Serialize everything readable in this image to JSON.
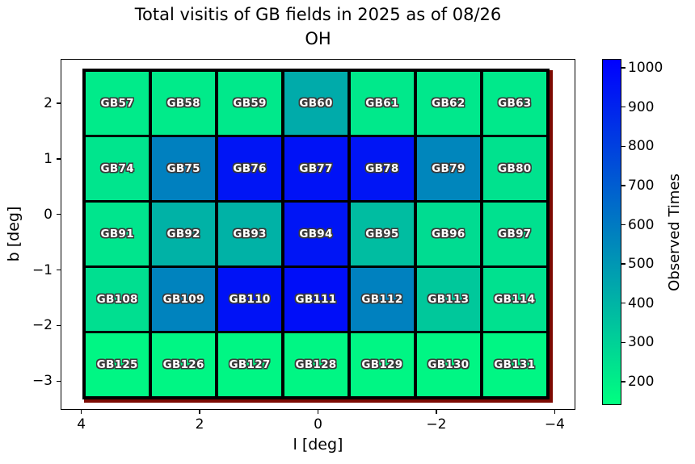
{
  "title": {
    "line1": "Total visitis of GB fields in 2025 as of 08/26",
    "line2": "OH"
  },
  "x_axis": {
    "label": "l [deg]",
    "lim": [
      4.35,
      -4.35
    ],
    "ticks": [
      {
        "v": 4,
        "label": "4"
      },
      {
        "v": 2,
        "label": "2"
      },
      {
        "v": 0,
        "label": "0"
      },
      {
        "v": -2,
        "label": "−2"
      },
      {
        "v": -4,
        "label": "−4"
      }
    ]
  },
  "y_axis": {
    "label": "b [deg]",
    "lim": [
      2.8,
      -3.52
    ],
    "ticks": [
      {
        "v": 2,
        "label": "2"
      },
      {
        "v": 1,
        "label": "1"
      },
      {
        "v": 0,
        "label": "0"
      },
      {
        "v": -1,
        "label": "−1"
      },
      {
        "v": -2,
        "label": "−2"
      },
      {
        "v": -3,
        "label": "−3"
      }
    ]
  },
  "colorbar": {
    "label": "Observed Times",
    "lim": [
      140,
      1023
    ],
    "colormap": "winter_r",
    "gradient_top_color": "#0000ff",
    "gradient_bottom_color": "#00ff80",
    "ticks": [
      {
        "v": 1000,
        "label": "1000"
      },
      {
        "v": 900,
        "label": "900"
      },
      {
        "v": 800,
        "label": "800"
      },
      {
        "v": 700,
        "label": "700"
      },
      {
        "v": 600,
        "label": "600"
      },
      {
        "v": 500,
        "label": "500"
      },
      {
        "v": 400,
        "label": "400"
      },
      {
        "v": 300,
        "label": "300"
      },
      {
        "v": 200,
        "label": "200"
      }
    ]
  },
  "chart_data": {
    "type": "heatmap",
    "title": "Total visitis of GB fields in 2025 as of 08/26 OH",
    "xlabel": "l [deg]",
    "ylabel": "b [deg]",
    "colorbar_label": "Observed Times",
    "colormap": "winter_r",
    "value_range": [
      140,
      1023
    ],
    "x_reversed": true,
    "grid_extent": {
      "l": [
        3.98,
        -3.91
      ],
      "b": [
        2.62,
        -3.33
      ]
    },
    "grid_shape": [
      5,
      7
    ],
    "rows": [
      {
        "cells": [
          {
            "name": "GB57",
            "value": 210
          },
          {
            "name": "GB58",
            "value": 210
          },
          {
            "name": "GB59",
            "value": 215
          },
          {
            "name": "GB60",
            "value": 430
          },
          {
            "name": "GB61",
            "value": 215
          },
          {
            "name": "GB62",
            "value": 220
          },
          {
            "name": "GB63",
            "value": 215
          }
        ]
      },
      {
        "cells": [
          {
            "name": "GB74",
            "value": 230
          },
          {
            "name": "GB75",
            "value": 580
          },
          {
            "name": "GB76",
            "value": 950
          },
          {
            "name": "GB77",
            "value": 960
          },
          {
            "name": "GB78",
            "value": 950
          },
          {
            "name": "GB79",
            "value": 560
          },
          {
            "name": "GB80",
            "value": 240
          }
        ]
      },
      {
        "cells": [
          {
            "name": "GB91",
            "value": 230
          },
          {
            "name": "GB92",
            "value": 405
          },
          {
            "name": "GB93",
            "value": 405
          },
          {
            "name": "GB94",
            "value": 950
          },
          {
            "name": "GB95",
            "value": 370
          },
          {
            "name": "GB96",
            "value": 260
          },
          {
            "name": "GB97",
            "value": 245
          }
        ]
      },
      {
        "cells": [
          {
            "name": "GB108",
            "value": 250
          },
          {
            "name": "GB109",
            "value": 570
          },
          {
            "name": "GB110",
            "value": 960
          },
          {
            "name": "GB111",
            "value": 975
          },
          {
            "name": "GB112",
            "value": 575
          },
          {
            "name": "GB113",
            "value": 330
          },
          {
            "name": "GB114",
            "value": 245
          }
        ]
      },
      {
        "cells": [
          {
            "name": "GB125",
            "value": 170
          },
          {
            "name": "GB126",
            "value": 170
          },
          {
            "name": "GB127",
            "value": 170
          },
          {
            "name": "GB128",
            "value": 170
          },
          {
            "name": "GB129",
            "value": 170
          },
          {
            "name": "GB130",
            "value": 170
          },
          {
            "name": "GB131",
            "value": 170
          }
        ]
      }
    ]
  }
}
